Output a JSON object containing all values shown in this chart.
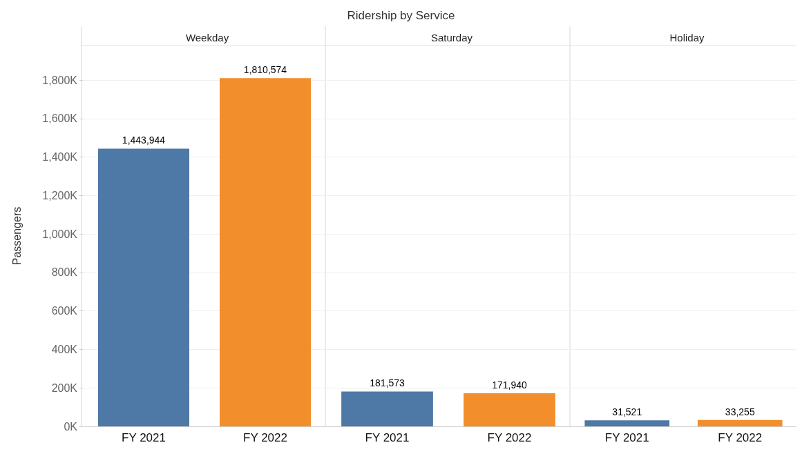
{
  "chart_data": [
    {
      "type": "bar",
      "subtitle": "Weekday",
      "ylabel": "Passengers",
      "categories": [
        "FY 2021",
        "FY 2022"
      ],
      "values": [
        1443944,
        1810574
      ],
      "value_labels": [
        "1,443,944",
        "1,810,574"
      ],
      "colors": [
        "#4e79a7",
        "#f28e2b"
      ],
      "ylim": [
        0,
        1980000
      ],
      "yticks": [
        {
          "value": 0,
          "label": "0K"
        },
        {
          "value": 200000,
          "label": "200K"
        },
        {
          "value": 400000,
          "label": "400K"
        },
        {
          "value": 600000,
          "label": "600K"
        },
        {
          "value": 800000,
          "label": "800K"
        },
        {
          "value": 1000000,
          "label": "1,000K"
        },
        {
          "value": 1200000,
          "label": "1,200K"
        },
        {
          "value": 1400000,
          "label": "1,400K"
        },
        {
          "value": 1600000,
          "label": "1,600K"
        },
        {
          "value": 1800000,
          "label": "1,800K"
        }
      ],
      "grid": "y"
    },
    {
      "type": "bar",
      "title": "Ridership by Service",
      "subtitle": "Saturday",
      "categories": [
        "FY 2021",
        "FY 2022"
      ],
      "values": [
        181573,
        171940
      ],
      "value_labels": [
        "181,573",
        "171,940"
      ],
      "colors": [
        "#4e79a7",
        "#f28e2b"
      ],
      "ylim": [
        0,
        1980000
      ],
      "yticks": [
        0,
        200000,
        400000,
        600000,
        800000,
        1000000,
        1200000,
        1400000,
        1600000,
        1800000
      ],
      "grid": "y",
      "tick_labels": "x"
    },
    {
      "type": "bar",
      "subtitle": "Holiday",
      "categories": [
        "FY 2021",
        "FY 2022"
      ],
      "values": [
        31521,
        33255
      ],
      "value_labels": [
        "31,521",
        "33,255"
      ],
      "colors": [
        "#4e79a7",
        "#f28e2b"
      ],
      "ylim": [
        0,
        1980000
      ],
      "yticks": [
        0,
        200000,
        400000,
        600000,
        800000,
        1000000,
        1200000,
        1400000,
        1600000,
        1800000
      ],
      "grid": "y",
      "tick_labels": "x"
    }
  ]
}
